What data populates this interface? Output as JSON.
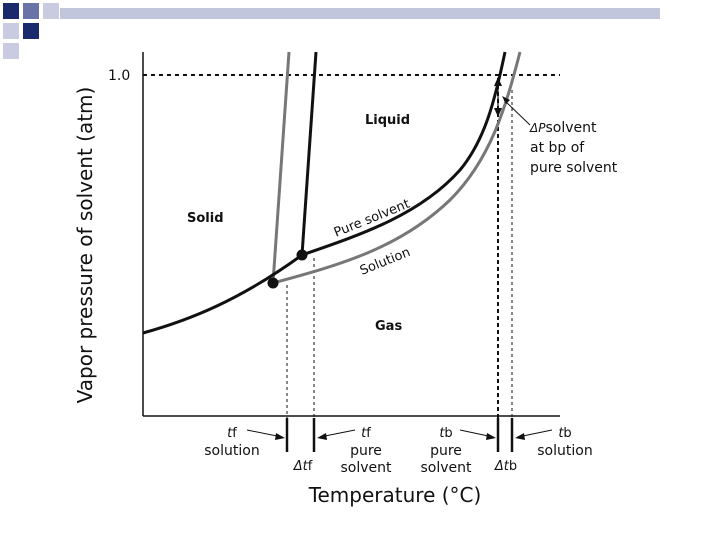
{
  "slide": {
    "decor_colors": {
      "dark": "#1a2a6c",
      "mid": "#6a73a8",
      "light": "#c9cbe0",
      "bar": "#c2c6dc"
    }
  },
  "diagram": {
    "y_axis_label": "Vapor pressure of solvent (atm)",
    "y_tick": "1.0",
    "x_axis_label": "Temperature (°C)",
    "regions": {
      "solid": "Solid",
      "liquid": "Liquid",
      "gas": "Gas"
    },
    "curve_labels": {
      "pure_solvent": "Pure solvent",
      "solution": "Solution"
    },
    "delta_p": {
      "symbol": "ΔP",
      "subscript": "solvent",
      "line2": "at bp of",
      "line3": "pure solvent"
    },
    "bottom": {
      "tf_solution": {
        "t": "t",
        "sub": "f",
        "word": "solution"
      },
      "delta_tf": {
        "d": "Δt",
        "sub": "f"
      },
      "tf_pure": {
        "t": "t",
        "sub": "f",
        "word1": "pure",
        "word2": "solvent"
      },
      "tb_pure": {
        "t": "t",
        "sub": "b",
        "word1": "pure",
        "word2": "solvent"
      },
      "delta_tb": {
        "d": "Δt",
        "sub": "b"
      },
      "tb_solution": {
        "t": "t",
        "sub": "b",
        "word": "solution"
      }
    },
    "colors": {
      "pure": "#111111",
      "solution": "#777777",
      "axis": "#111111"
    }
  }
}
